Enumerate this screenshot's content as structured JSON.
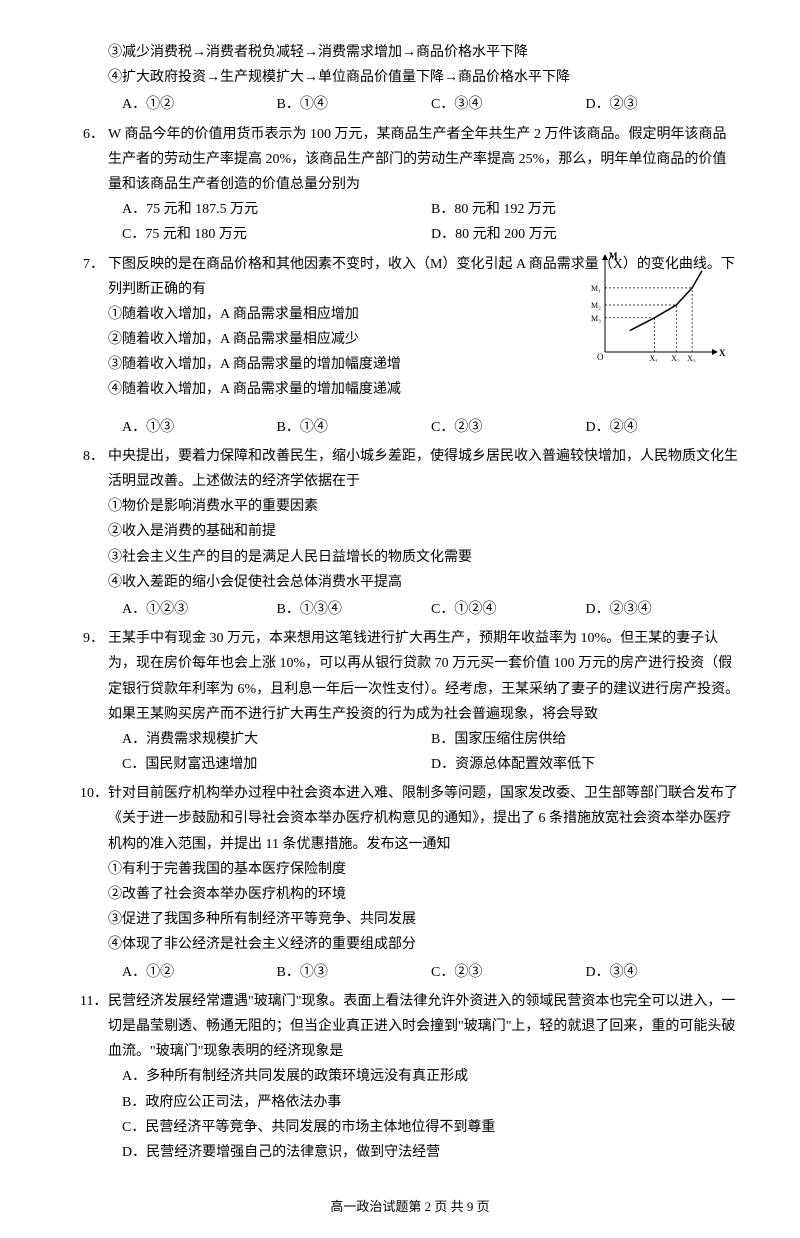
{
  "q5": {
    "stmt3": "③减少消费税→消费者税负减轻→消费需求增加→商品价格水平下降",
    "stmt4": "④扩大政府投资→生产规模扩大→单位商品价值量下降→商品价格水平下降",
    "optA": "A．①②",
    "optB": "B．①④",
    "optC": "C．③④",
    "optD": "D．②③"
  },
  "q6": {
    "num": "6．",
    "text": "W 商品今年的价值用货币表示为 100 万元，某商品生产者全年共生产 2 万件该商品。假定明年该商品生产者的劳动生产率提高 20%，该商品生产部门的劳动生产率提高 25%，那么，明年单位商品的价值量和该商品生产者创造的价值总量分别为",
    "optA": "A．75 元和 187.5 万元",
    "optB": "B．80 元和 192 万元",
    "optC": "C．75 元和 180 万元",
    "optD": "D．80 元和 200 万元"
  },
  "q7": {
    "num": "7．",
    "text": "下图反映的是在商品价格和其他因素不变时，收入（M）变化引起 A 商品需求量（X）的变化曲线。下列判断正确的有",
    "stmt1": "①随着收入增加，A 商品需求量相应增加",
    "stmt2": "②随着收入增加，A 商品需求量相应减少",
    "stmt3": "③随着收入增加，A 商品需求量的增加幅度递增",
    "stmt4": "④随着收入增加，A 商品需求量的增加幅度递减",
    "optA": "A．①③",
    "optB": "B．①④",
    "optC": "C．②③",
    "optD": "D．②④",
    "chart": {
      "type": "line",
      "axis_y_label": "M",
      "axis_x_label": "X",
      "y_ticks": [
        "M₁",
        "M₂",
        "M₃"
      ],
      "x_ticks": [
        "X₁",
        "X₂",
        "X₃"
      ],
      "points": [
        [
          25,
          25
        ],
        [
          50,
          40
        ],
        [
          72,
          55
        ],
        [
          88,
          75
        ],
        [
          98,
          95
        ]
      ],
      "line_color": "#000000",
      "dash_color": "#000000",
      "background_color": "#ffffff",
      "font_size": 9
    }
  },
  "q8": {
    "num": "8．",
    "text": "中央提出，要着力保障和改善民生，缩小城乡差距，使得城乡居民收入普遍较快增加，人民物质文化生活明显改善。上述做法的经济学依据在于",
    "stmt1": "①物价是影响消费水平的重要因素",
    "stmt2": "②收入是消费的基础和前提",
    "stmt3": "③社会主义生产的目的是满足人民日益增长的物质文化需要",
    "stmt4": "④收入差距的缩小会促使社会总体消费水平提高",
    "optA": "A．①②③",
    "optB": "B．①③④",
    "optC": "C．①②④",
    "optD": "D．②③④"
  },
  "q9": {
    "num": "9．",
    "text": "王某手中有现金 30 万元，本来想用这笔钱进行扩大再生产，预期年收益率为 10%。但王某的妻子认为，现在房价每年也会上涨 10%，可以再从银行贷款 70 万元买一套价值 100 万元的房产进行投资（假定银行贷款年利率为 6%，且利息一年后一次性支付）。经考虑，王某采纳了妻子的建议进行房产投资。如果王某购买房产而不进行扩大再生产投资的行为成为社会普遍现象，将会导致",
    "optA": "A．消费需求规模扩大",
    "optB": "B．国家压缩住房供给",
    "optC": "C．国民财富迅速增加",
    "optD": "D．资源总体配置效率低下"
  },
  "q10": {
    "num": "10．",
    "text": "针对目前医疗机构举办过程中社会资本进入难、限制多等问题，国家发改委、卫生部等部门联合发布了《关于进一步鼓励和引导社会资本举办医疗机构意见的通知》，提出了 6 条措施放宽社会资本举办医疗机构的准入范围，并提出 11 条优惠措施。发布这一通知",
    "stmt1": "①有利于完善我国的基本医疗保险制度",
    "stmt2": "②改善了社会资本举办医疗机构的环境",
    "stmt3": "③促进了我国多种所有制经济平等竞争、共同发展",
    "stmt4": "④体现了非公经济是社会主义经济的重要组成部分",
    "optA": "A．①②",
    "optB": "B．①③",
    "optC": "C．②③",
    "optD": "D．③④"
  },
  "q11": {
    "num": "11．",
    "text": "民营经济发展经常遭遇\"玻璃门\"现象。表面上看法律允许外资进入的领域民营资本也完全可以进入，一切是晶莹剔透、畅通无阻的；但当企业真正进入时会撞到\"玻璃门\"上，轻的就退了回来，重的可能头破血流。\"玻璃门\"现象表明的经济现象是",
    "optA": "A．多种所有制经济共同发展的政策环境远没有真正形成",
    "optB": "B．政府应公正司法，严格依法办事",
    "optC": "C．民营经济平等竞争、共同发展的市场主体地位得不到尊重",
    "optD": "D．民营经济要增强自己的法律意识，做到守法经营"
  },
  "footer": "高一政治试题第 2 页 共 9 页"
}
